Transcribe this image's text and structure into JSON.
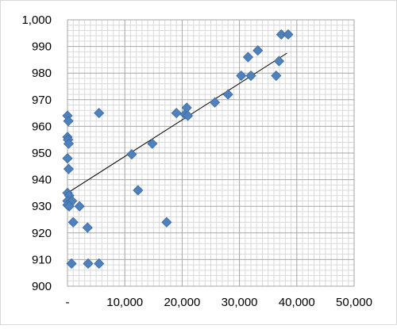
{
  "chart_data": {
    "type": "scatter",
    "title": "",
    "xlabel": "",
    "ylabel": "",
    "xlim": [
      0,
      50000
    ],
    "ylim": [
      900,
      1000
    ],
    "x_ticks": [
      0,
      10000,
      20000,
      30000,
      40000,
      50000
    ],
    "x_tick_labels": [
      "-",
      "10,000",
      "20,000",
      "30,000",
      "40,000",
      "50,000"
    ],
    "y_ticks": [
      900,
      910,
      920,
      930,
      940,
      950,
      960,
      970,
      980,
      990,
      1000
    ],
    "y_tick_labels": [
      "900",
      "910",
      "920",
      "930",
      "940",
      "950",
      "960",
      "970",
      "980",
      "990",
      "1,000"
    ],
    "grid": true,
    "minor_grid": true,
    "marker": "diamond",
    "marker_color": "#4f81bd",
    "trendline": {
      "type": "linear",
      "x": [
        0,
        38300
      ],
      "y": [
        935,
        987.5
      ],
      "color": "#000000"
    },
    "points": [
      {
        "x": 0,
        "y": 964
      },
      {
        "x": 150,
        "y": 962
      },
      {
        "x": 0,
        "y": 956
      },
      {
        "x": 100,
        "y": 955
      },
      {
        "x": 200,
        "y": 953.5
      },
      {
        "x": 0,
        "y": 948
      },
      {
        "x": 200,
        "y": 944
      },
      {
        "x": 0,
        "y": 935
      },
      {
        "x": 300,
        "y": 934
      },
      {
        "x": 0,
        "y": 932
      },
      {
        "x": 400,
        "y": 931
      },
      {
        "x": 800,
        "y": 932
      },
      {
        "x": 0,
        "y": 930.5
      },
      {
        "x": 300,
        "y": 930
      },
      {
        "x": 2100,
        "y": 930
      },
      {
        "x": 1000,
        "y": 924
      },
      {
        "x": 3500,
        "y": 922
      },
      {
        "x": 700,
        "y": 908.5
      },
      {
        "x": 3600,
        "y": 908.5
      },
      {
        "x": 5500,
        "y": 908.5
      },
      {
        "x": 5500,
        "y": 965
      },
      {
        "x": 11200,
        "y": 949.5
      },
      {
        "x": 12300,
        "y": 936
      },
      {
        "x": 14800,
        "y": 953.5
      },
      {
        "x": 17300,
        "y": 924
      },
      {
        "x": 19000,
        "y": 965
      },
      {
        "x": 20500,
        "y": 964.5
      },
      {
        "x": 20800,
        "y": 967
      },
      {
        "x": 21000,
        "y": 964
      },
      {
        "x": 25700,
        "y": 969
      },
      {
        "x": 28000,
        "y": 972
      },
      {
        "x": 30300,
        "y": 979
      },
      {
        "x": 31500,
        "y": 986
      },
      {
        "x": 32000,
        "y": 979
      },
      {
        "x": 33200,
        "y": 988.5
      },
      {
        "x": 36400,
        "y": 979
      },
      {
        "x": 36900,
        "y": 984.5
      },
      {
        "x": 37300,
        "y": 994.5
      },
      {
        "x": 38500,
        "y": 994.5
      }
    ]
  }
}
